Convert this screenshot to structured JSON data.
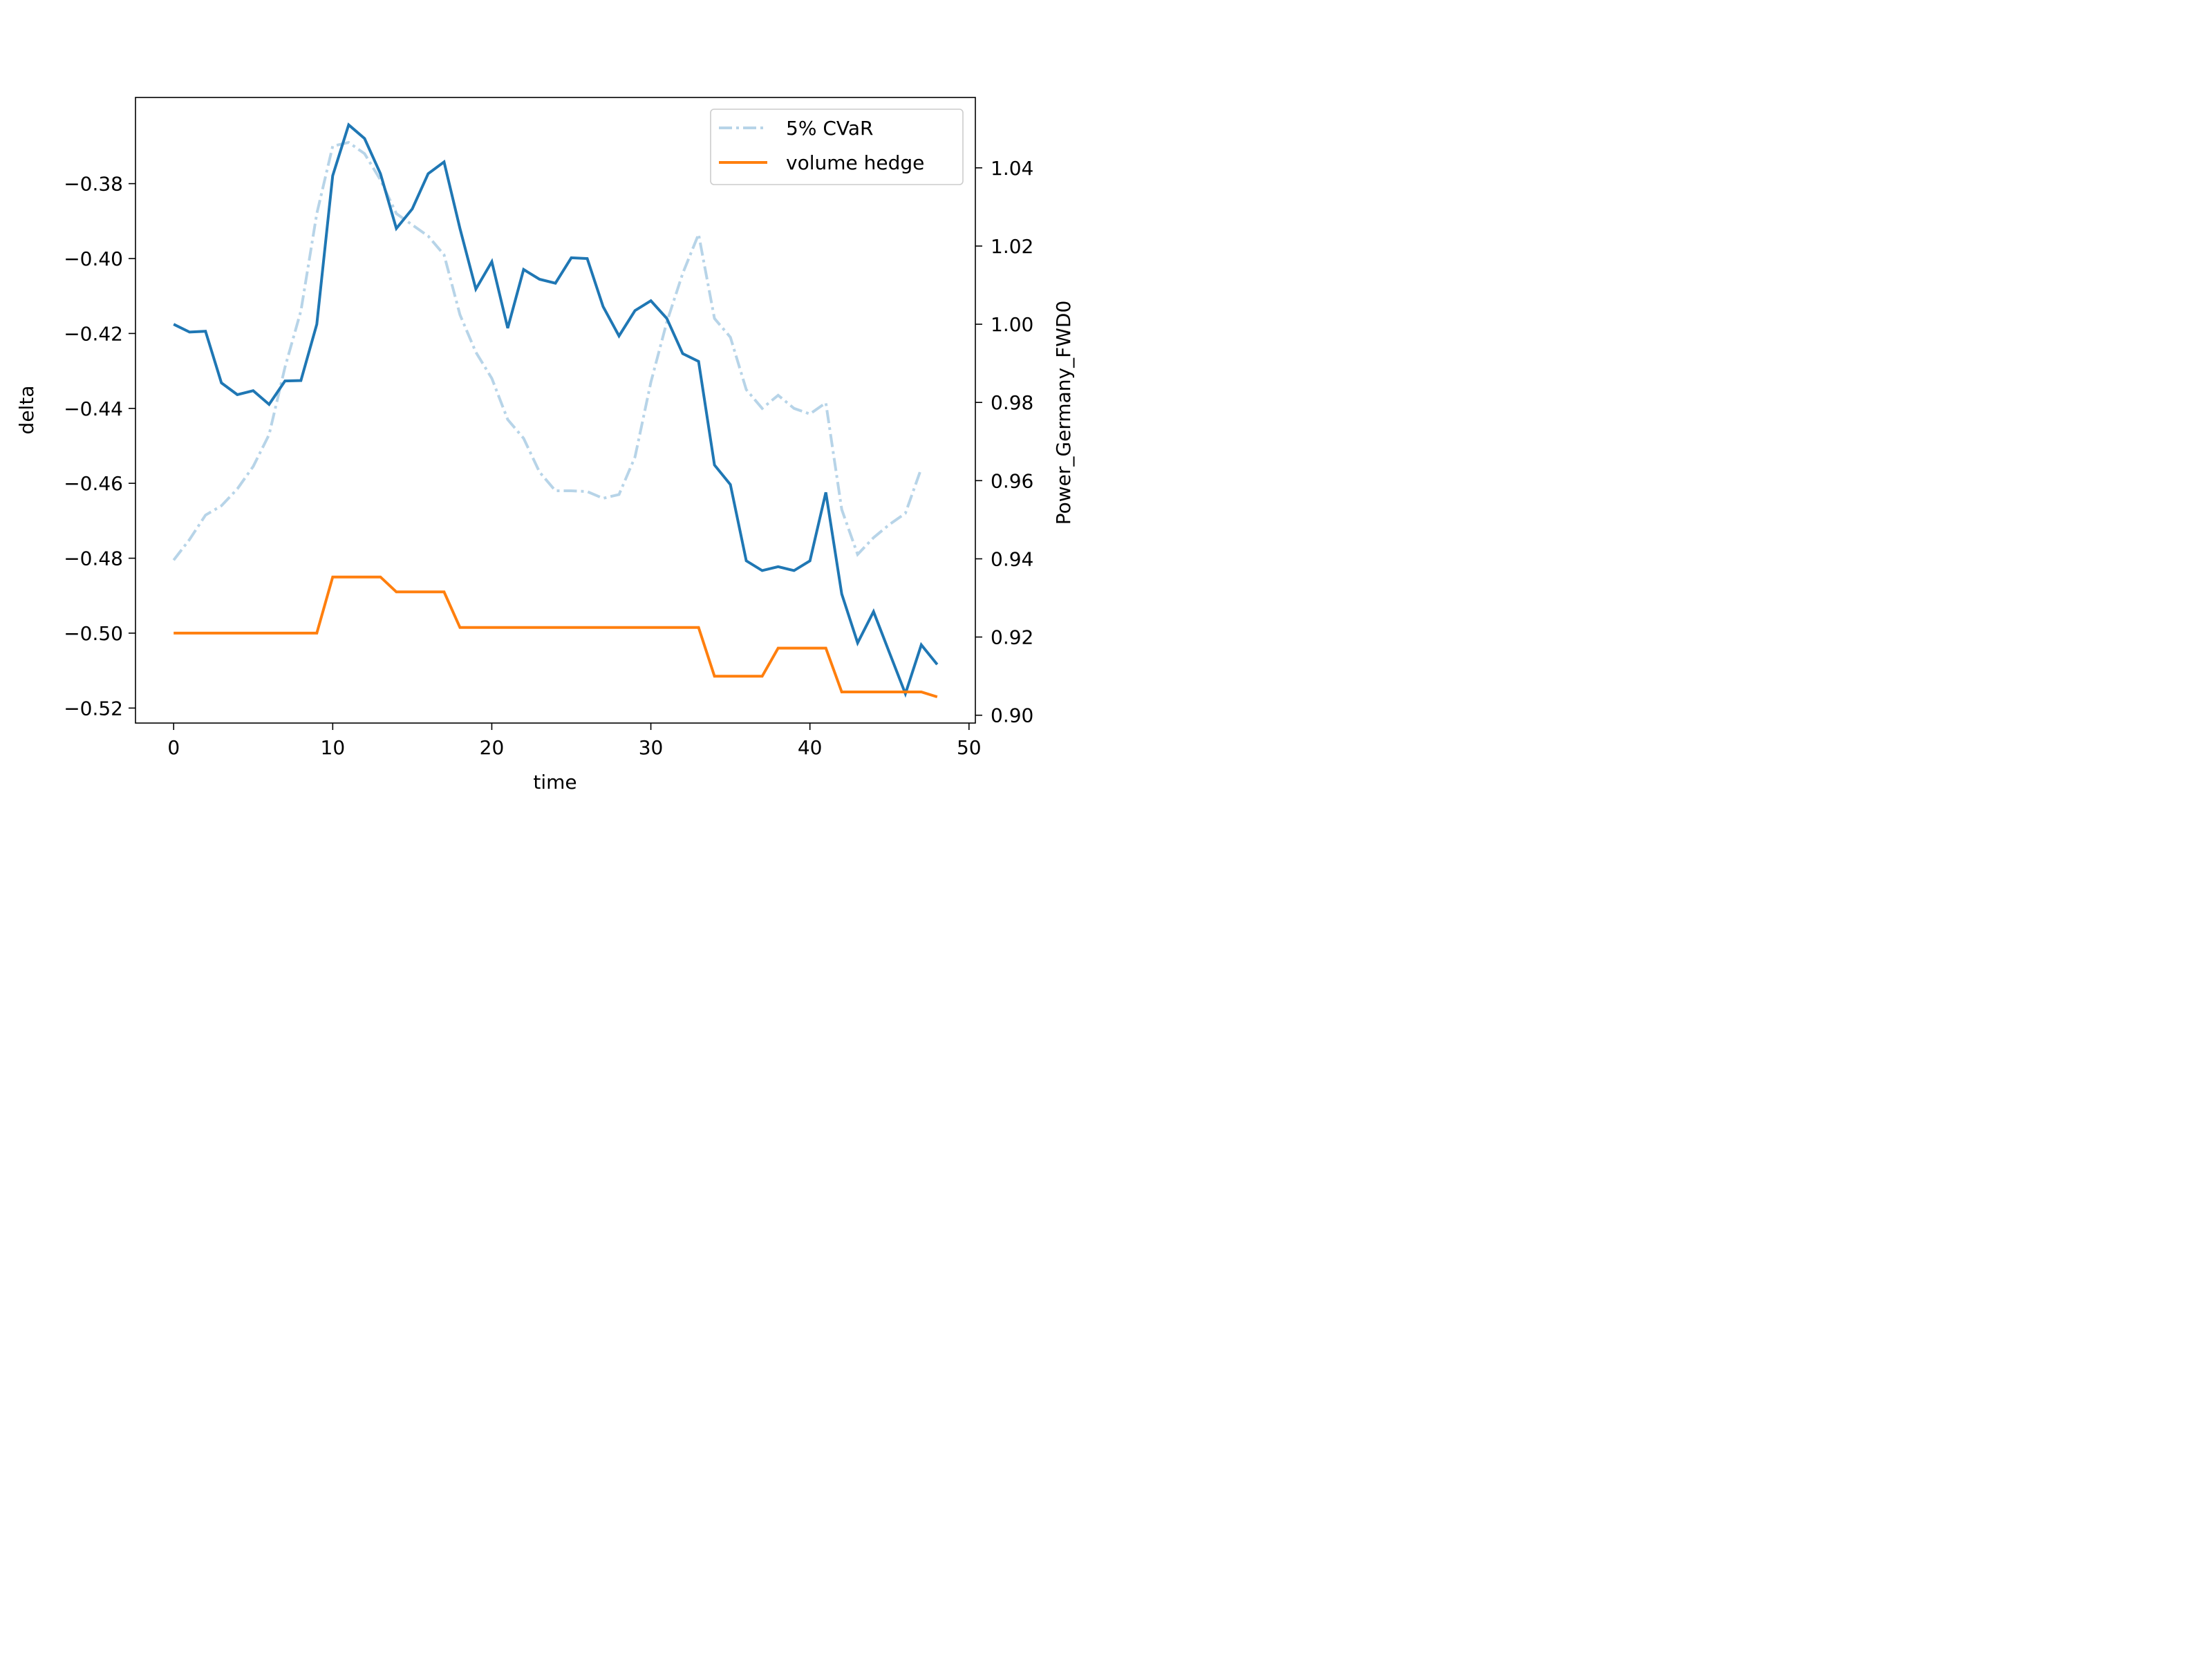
{
  "chart_data": {
    "type": "line",
    "xlabel": "time",
    "ylabel_left": "delta",
    "ylabel_right": "Power_Germany_FWD0",
    "xlim": [
      -2.4,
      50.4
    ],
    "ylim_left": [
      -0.524,
      -0.357
    ],
    "ylim_right": [
      0.898,
      1.058
    ],
    "x_ticks": [
      0,
      10,
      20,
      30,
      40,
      50
    ],
    "x_tick_labels": [
      "0",
      "10",
      "20",
      "30",
      "40",
      "50"
    ],
    "y_left_ticks": [
      -0.38,
      -0.4,
      -0.42,
      -0.44,
      -0.46,
      -0.48,
      -0.5,
      -0.52
    ],
    "y_left_tick_labels": [
      "−0.38",
      "−0.40",
      "−0.42",
      "−0.44",
      "−0.46",
      "−0.48",
      "−0.50",
      "−0.52"
    ],
    "y_right_ticks": [
      1.04,
      1.02,
      1.0,
      0.98,
      0.96,
      0.94,
      0.92,
      0.9
    ],
    "y_right_tick_labels": [
      "1.04",
      "1.02",
      "1.00",
      "0.98",
      "0.96",
      "0.94",
      "0.92",
      "0.90"
    ],
    "legend_position": "top-right",
    "grid": false,
    "series": [
      {
        "name": "5% CVaR",
        "axis": "left",
        "style": "dashdot",
        "color": "#b7d4e8",
        "x": [
          0,
          1,
          2,
          3,
          4,
          5,
          6,
          7,
          8,
          9,
          10,
          11,
          12,
          13,
          14,
          15,
          16,
          17,
          18,
          19,
          20,
          21,
          22,
          23,
          24,
          25,
          26,
          27,
          28,
          29,
          30,
          31,
          32,
          33,
          34,
          35,
          36,
          37,
          38,
          39,
          40,
          41,
          42,
          43,
          44,
          45,
          46,
          47
        ],
        "values": [
          -0.4805,
          -0.475,
          -0.4685,
          -0.466,
          -0.4615,
          -0.4555,
          -0.447,
          -0.429,
          -0.414,
          -0.388,
          -0.37,
          -0.369,
          -0.372,
          -0.379,
          -0.388,
          -0.391,
          -0.394,
          -0.399,
          -0.415,
          -0.425,
          -0.432,
          -0.443,
          -0.448,
          -0.457,
          -0.462,
          -0.462,
          -0.4622,
          -0.464,
          -0.463,
          -0.453,
          -0.433,
          -0.417,
          -0.404,
          -0.3935,
          -0.416,
          -0.421,
          -0.435,
          -0.44,
          -0.4365,
          -0.44,
          -0.4415,
          -0.4385,
          -0.467,
          -0.479,
          -0.4745,
          -0.471,
          -0.468,
          -0.456
        ]
      },
      {
        "name": "",
        "axis": "right",
        "style": "solid",
        "color": "#1f77b4",
        "x": [
          0,
          1,
          2,
          3,
          4,
          5,
          6,
          7,
          8,
          9,
          10,
          11,
          12,
          13,
          14,
          15,
          16,
          17,
          18,
          19,
          20,
          21,
          22,
          23,
          24,
          25,
          26,
          27,
          28,
          29,
          30,
          31,
          32,
          33,
          34,
          35,
          36,
          37,
          38,
          39,
          40,
          41,
          42,
          43,
          44,
          45,
          46,
          47,
          48
        ],
        "values": [
          1.0,
          0.998,
          0.9982,
          0.985,
          0.982,
          0.983,
          0.9795,
          0.9855,
          0.9856,
          1.0,
          1.038,
          1.051,
          1.0475,
          1.0385,
          1.0245,
          1.0295,
          1.0385,
          1.0415,
          1.0245,
          1.009,
          1.016,
          0.999,
          1.014,
          1.0115,
          1.0105,
          1.017,
          1.0168,
          1.0045,
          0.997,
          1.0035,
          1.006,
          1.0015,
          0.9925,
          0.9905,
          0.964,
          0.959,
          0.9395,
          0.937,
          0.938,
          0.937,
          0.9395,
          0.957,
          0.931,
          0.9185,
          0.9265,
          0.916,
          0.9055,
          0.918,
          0.913
        ]
      },
      {
        "name": "volume hedge",
        "axis": "left",
        "style": "solid",
        "color": "#ff7f0e",
        "x": [
          0,
          1,
          2,
          3,
          4,
          5,
          6,
          7,
          8,
          9,
          10,
          11,
          12,
          13,
          14,
          15,
          16,
          17,
          18,
          19,
          20,
          21,
          22,
          23,
          24,
          25,
          26,
          27,
          28,
          29,
          30,
          31,
          32,
          33,
          34,
          35,
          36,
          37,
          38,
          39,
          40,
          41,
          42,
          43,
          44,
          45,
          46,
          47,
          48
        ],
        "values": [
          -0.5,
          -0.5,
          -0.5,
          -0.5,
          -0.5,
          -0.5,
          -0.5,
          -0.5,
          -0.5,
          -0.5,
          -0.485,
          -0.485,
          -0.485,
          -0.485,
          -0.489,
          -0.489,
          -0.489,
          -0.489,
          -0.4985,
          -0.4985,
          -0.4985,
          -0.4985,
          -0.4985,
          -0.4985,
          -0.4985,
          -0.4985,
          -0.4985,
          -0.4985,
          -0.4985,
          -0.4985,
          -0.4985,
          -0.4985,
          -0.4985,
          -0.4985,
          -0.5115,
          -0.5115,
          -0.5115,
          -0.5115,
          -0.504,
          -0.504,
          -0.504,
          -0.504,
          -0.5157,
          -0.5157,
          -0.5157,
          -0.5157,
          -0.5157,
          -0.5157,
          -0.517
        ]
      }
    ]
  }
}
